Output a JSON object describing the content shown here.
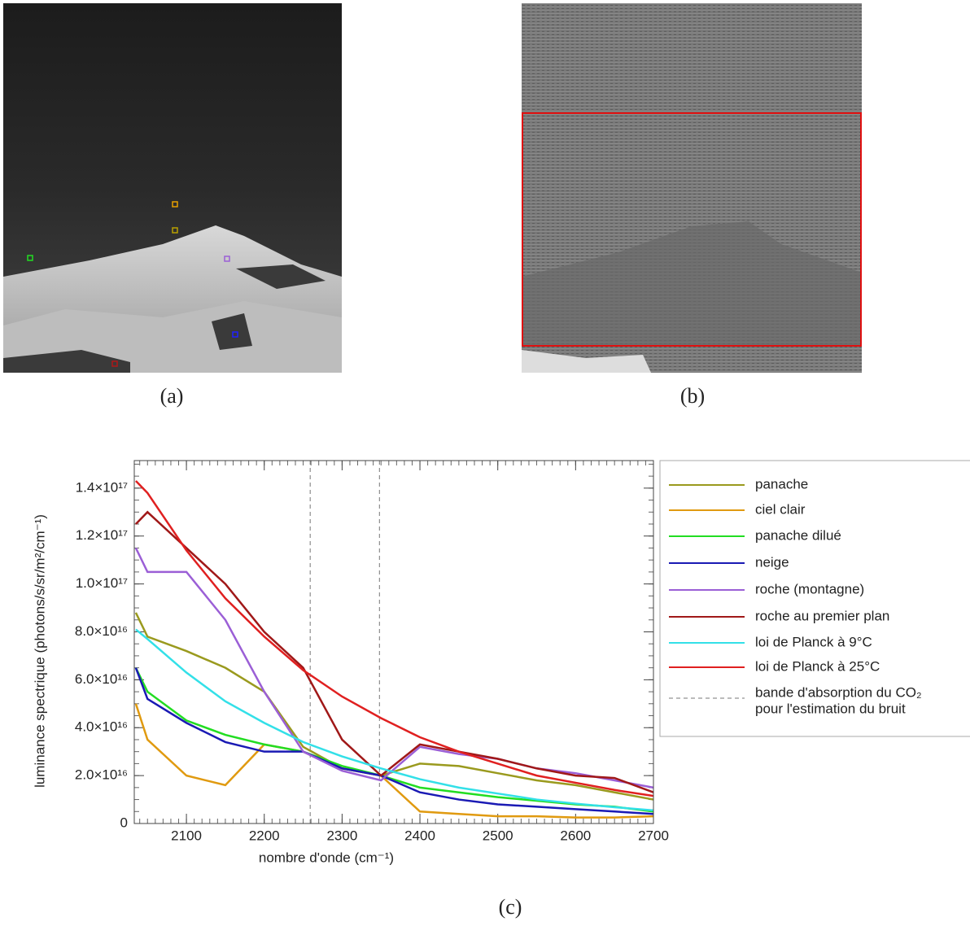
{
  "panels": {
    "a": "(a)",
    "b": "(b)",
    "c": "(c)"
  },
  "chart_data": {
    "type": "line",
    "xlabel": "nombre d'onde (cm⁻¹)",
    "ylabel": "luminance spectrique (photons/s/sr/m²/cm⁻¹)",
    "x": [
      2035,
      2050,
      2100,
      2150,
      2200,
      2250,
      2300,
      2350,
      2400,
      2450,
      2500,
      2550,
      2600,
      2650,
      2700
    ],
    "xlim": [
      2033,
      2700
    ],
    "xticks": [
      2100,
      2200,
      2300,
      2400,
      2500,
      2600,
      2700
    ],
    "ylim": [
      0,
      1.515e+17
    ],
    "yticks": [
      0,
      {
        "value": 2e+16,
        "label": "2.0×10¹⁶"
      },
      {
        "value": 4e+16,
        "label": "4.0×10¹⁶"
      },
      {
        "value": 6e+16,
        "label": "6.0×10¹⁶"
      },
      {
        "value": 8e+16,
        "label": "8.0×10¹⁶"
      },
      {
        "value": 1e+17,
        "label": "1.0×10¹⁷"
      },
      {
        "value": 1.2e+17,
        "label": "1.2×10¹⁷"
      },
      {
        "value": 1.4e+17,
        "label": "1.4×10¹⁷"
      }
    ],
    "series": [
      {
        "name": "panache",
        "color": "#9a9a1e",
        "values": [
          8.8e+16,
          7.8e+16,
          7.2e+16,
          6.5e+16,
          5.5e+16,
          3.2e+16,
          2.3e+16,
          2e+16,
          2.5e+16,
          2.4e+16,
          2.1e+16,
          1.8e+16,
          1.6e+16,
          1.3e+16,
          1e+16
        ]
      },
      {
        "name": "ciel clair",
        "color": "#e09a10",
        "values": [
          5e+16,
          3.5e+16,
          2e+16,
          1.6e+16,
          3.3e+16,
          3e+16,
          2.3e+16,
          2e+16,
          5000000000000000.0,
          4000000000000000.0,
          3000000000000000.0,
          3000000000000000.0,
          2500000000000000.0,
          2500000000000000.0,
          3000000000000000.0
        ]
      },
      {
        "name": "panache dilué",
        "color": "#22dd22",
        "values": [
          6.5e+16,
          5.5e+16,
          4.3e+16,
          3.7e+16,
          3.3e+16,
          3e+16,
          2.4e+16,
          2e+16,
          1.5e+16,
          1.3e+16,
          1.1e+16,
          9500000000000000.0,
          8000000000000000.0,
          7000000000000000.0,
          5000000000000000.0
        ]
      },
      {
        "name": "neige",
        "color": "#1a1ab4",
        "values": [
          6.5e+16,
          5.2e+16,
          4.2e+16,
          3.4e+16,
          3e+16,
          3e+16,
          2.3e+16,
          2e+16,
          1.3e+16,
          1e+16,
          8000000000000000.0,
          7000000000000000.0,
          6000000000000000.0,
          5000000000000000.0,
          4000000000000000.0
        ]
      },
      {
        "name": "roche (montagne)",
        "color": "#9b5fd6",
        "values": [
          1.15e+17,
          1.05e+17,
          1.05e+17,
          8.5e+16,
          5.5e+16,
          3e+16,
          2.2e+16,
          1.8e+16,
          3.2e+16,
          2.9e+16,
          2.7e+16,
          2.3e+16,
          2.1e+16,
          1.8e+16,
          1.5e+16
        ]
      },
      {
        "name": "roche au premier plan",
        "color": "#a01818",
        "values": [
          1.25e+17,
          1.3e+17,
          1.15e+17,
          1e+17,
          8e+16,
          6.5e+16,
          3.5e+16,
          2e+16,
          3.3e+16,
          3e+16,
          2.7e+16,
          2.3e+16,
          2e+16,
          1.9e+16,
          1.3e+16
        ]
      },
      {
        "name": "loi de Planck à 9°C",
        "color": "#33e0e8",
        "values": [
          8.1e+16,
          7.7e+16,
          6.3e+16,
          5.1e+16,
          4.2e+16,
          3.4e+16,
          2.8e+16,
          2.3e+16,
          1.85e+16,
          1.5e+16,
          1.25e+16,
          1e+16,
          8300000000000000.0,
          6800000000000000.0,
          5500000000000000.0
        ]
      },
      {
        "name": "loi de Planck à 25°C",
        "color": "#e02020",
        "values": [
          1.43e+17,
          1.38e+17,
          1.14e+17,
          9.4e+16,
          7.8e+16,
          6.4e+16,
          5.3e+16,
          4.4e+16,
          3.6e+16,
          3e+16,
          2.5e+16,
          2e+16,
          1.7e+16,
          1.4e+16,
          1.15e+16
        ]
      }
    ],
    "co2_band": [
      2259,
      2348
    ],
    "co2_band_label": [
      "bande d'absorption du CO₂",
      "pour l'estimation du bruit"
    ]
  }
}
